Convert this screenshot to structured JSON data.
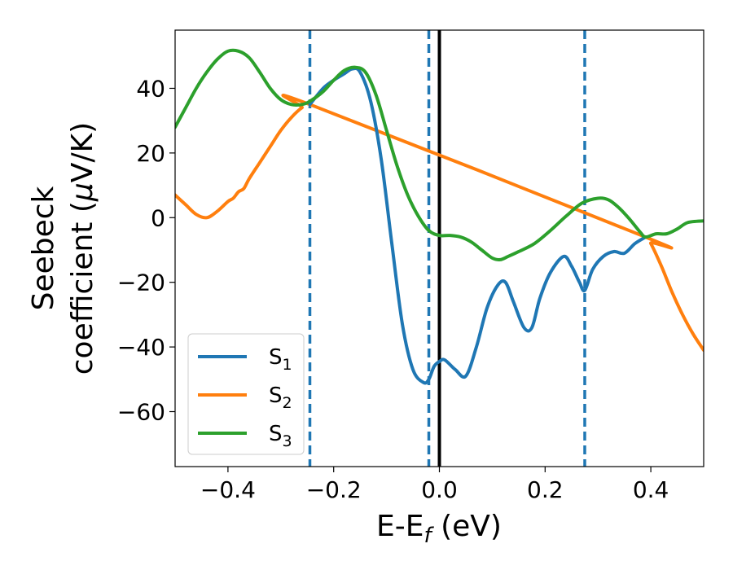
{
  "chart_data": {
    "type": "line",
    "xlabel": "E-E",
    "xlabel_sub": "f",
    "xlabel_unit": " (eV)",
    "ylabel_line1": "Seebeck",
    "ylabel_line2": "coefficient  (",
    "ylabel_mu": "μ",
    "ylabel_unit": "V/K)",
    "xlim": [
      -0.5,
      0.5
    ],
    "ylim": [
      -77,
      58
    ],
    "xticks": [
      -0.4,
      -0.2,
      0.0,
      0.2,
      0.4
    ],
    "xtick_labels": [
      "−0.4",
      "−0.2",
      "0.0",
      "0.2",
      "0.4"
    ],
    "yticks": [
      40,
      20,
      0,
      -20,
      -40,
      -60
    ],
    "ytick_labels": [
      "40",
      "20",
      "0",
      "−20",
      "−40",
      "−60"
    ],
    "grid": false,
    "legend_position": "lower-left",
    "vlines_dashed": [
      -0.245,
      -0.02,
      0.275
    ],
    "vline_solid": 0.0,
    "colors": {
      "S1": "#1f77b4",
      "S2": "#ff7f0e",
      "S3": "#2ca02c",
      "vline_dashed": "#1f77b4",
      "vline_solid": "#000000"
    },
    "series": [
      {
        "name": "S",
        "sub": "1",
        "color": "#1f77b4",
        "x": [
          -0.245,
          -0.22,
          -0.2,
          -0.18,
          -0.165,
          -0.15,
          -0.13,
          -0.11,
          -0.09,
          -0.07,
          -0.05,
          -0.03,
          -0.02,
          -0.01,
          0.0,
          0.01,
          0.03,
          0.05,
          0.07,
          0.09,
          0.11,
          0.125,
          0.14,
          0.16,
          0.175,
          0.19,
          0.21,
          0.235,
          0.25,
          0.265,
          0.275,
          0.29,
          0.31,
          0.33,
          0.35,
          0.37,
          0.39
        ],
        "y": [
          35,
          40,
          42.5,
          44.5,
          46,
          45,
          36,
          18,
          -8,
          -33,
          -47,
          -51,
          -50,
          -46,
          -44.5,
          -44,
          -47,
          -49,
          -40,
          -28,
          -21,
          -20,
          -26,
          -34,
          -34,
          -25,
          -17,
          -12,
          -15,
          -20,
          -22.5,
          -16,
          -12,
          -10.5,
          -11,
          -8,
          -6
        ]
      },
      {
        "name": "S",
        "sub": "2",
        "color": "#ff7f0e",
        "x": [
          -0.5,
          -0.48,
          -0.46,
          -0.44,
          -0.42,
          -0.4,
          -0.38,
          -0.36,
          -0.34,
          -0.32,
          -0.3,
          -0.28,
          -0.26,
          -0.245,
          -0.39,
          -0.37,
          0.39,
          0.4,
          0.42,
          0.44,
          0.46,
          0.48,
          0.5
        ],
        "y": [
          7,
          4,
          1,
          0,
          2,
          5,
          8,
          12,
          17,
          22,
          27,
          31,
          34,
          35,
          6,
          9,
          -6,
          -8,
          -15,
          -23,
          -30,
          -36,
          -41
        ]
      },
      {
        "name": "S",
        "sub": "3",
        "color": "#2ca02c",
        "x": [
          -0.5,
          -0.48,
          -0.46,
          -0.44,
          -0.42,
          -0.4,
          -0.38,
          -0.36,
          -0.34,
          -0.32,
          -0.3,
          -0.28,
          -0.26,
          -0.245,
          -0.22,
          -0.2,
          -0.18,
          -0.16,
          -0.14,
          -0.12,
          -0.1,
          -0.08,
          -0.06,
          -0.04,
          -0.02,
          0.0,
          0.02,
          0.04,
          0.06,
          0.08,
          0.1,
          0.115,
          0.13,
          0.15,
          0.18,
          0.21,
          0.24,
          0.27,
          0.3,
          0.32,
          0.34,
          0.36,
          0.38,
          0.39,
          0.41,
          0.43,
          0.45,
          0.47,
          0.5
        ],
        "y": [
          28,
          34,
          40,
          45,
          49,
          51.5,
          51.5,
          49.5,
          45,
          40,
          36.5,
          35,
          35,
          36,
          39,
          42.5,
          45.5,
          46.5,
          45,
          38,
          27,
          16,
          7,
          0.5,
          -4,
          -5.5,
          -5.5,
          -6,
          -7.5,
          -10,
          -12.5,
          -13,
          -12,
          -10.5,
          -8,
          -4,
          0.5,
          4.5,
          6,
          5.5,
          3,
          -0.5,
          -4.5,
          -6,
          -5,
          -5,
          -3.5,
          -1.5,
          -1
        ]
      }
    ]
  }
}
